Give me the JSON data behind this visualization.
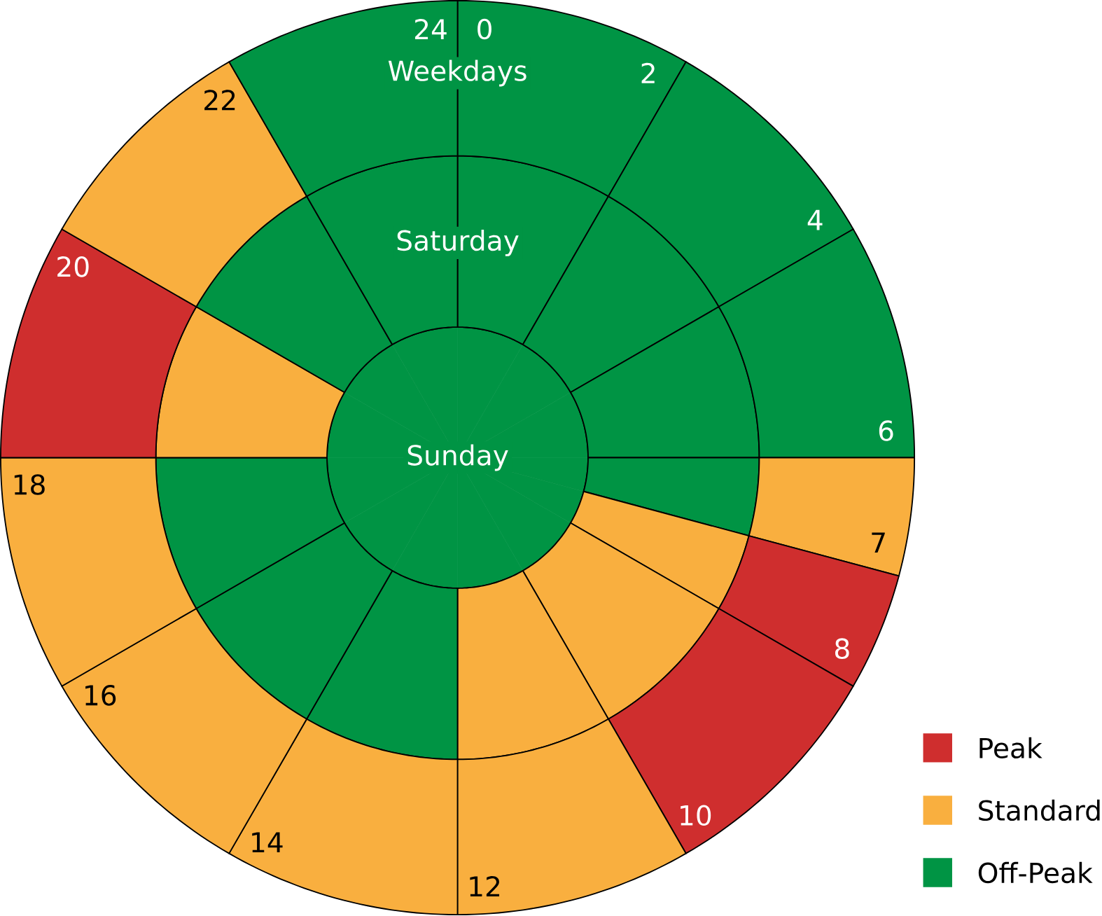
{
  "chart_data": {
    "type": "donut",
    "categories": [
      null,
      null,
      null,
      null,
      null,
      null,
      null,
      null,
      null,
      null,
      null,
      null,
      null
    ],
    "annotations": [
      "0",
      "2",
      "4",
      "6",
      "7",
      "8",
      "10",
      "12",
      "14",
      "16",
      "18",
      "20",
      "22",
      "24",
      "Peak",
      "Standard",
      "Off-Peak"
    ],
    "series": [
      {
        "name": "Sunday",
        "values": [
          8.333,
          8.333,
          8.333,
          4.167,
          4.167,
          8.333,
          8.333,
          8.333,
          8.333,
          8.333,
          8.333,
          8.333,
          8.333
        ],
        "colors": [
          "#009444",
          "#009444",
          "#009444",
          "#009444",
          "#009444",
          "#009444",
          "#009444",
          "#009444",
          "#009444",
          "#009444",
          "#009444",
          "#009444",
          "#009444"
        ]
      },
      {
        "name": "Saturday",
        "values": [
          8.333,
          8.333,
          8.333,
          4.167,
          4.167,
          8.333,
          8.333,
          8.333,
          8.333,
          8.333,
          8.333,
          8.333,
          8.333
        ],
        "colors": [
          "#009444",
          "#009444",
          "#009444",
          "#009444",
          "#f9af3f",
          "#f9af3f",
          "#f9af3f",
          "#009444",
          "#009444",
          "#009444",
          "#f9af3f",
          "#009444",
          "#009444"
        ]
      },
      {
        "name": "Weekdays",
        "values": [
          8.333,
          8.333,
          8.333,
          4.167,
          4.167,
          8.333,
          8.333,
          8.333,
          8.333,
          8.333,
          8.333,
          8.333,
          8.333
        ],
        "colors": [
          "#009444",
          "#009444",
          "#009444",
          "#f9af3f",
          "#cf2e2e",
          "#cf2e2e",
          "#f9af3f",
          "#f9af3f",
          "#f9af3f",
          "#f9af3f",
          "#cf2e2e",
          "#f9af3f",
          "#009444"
        ]
      }
    ]
  }
}
